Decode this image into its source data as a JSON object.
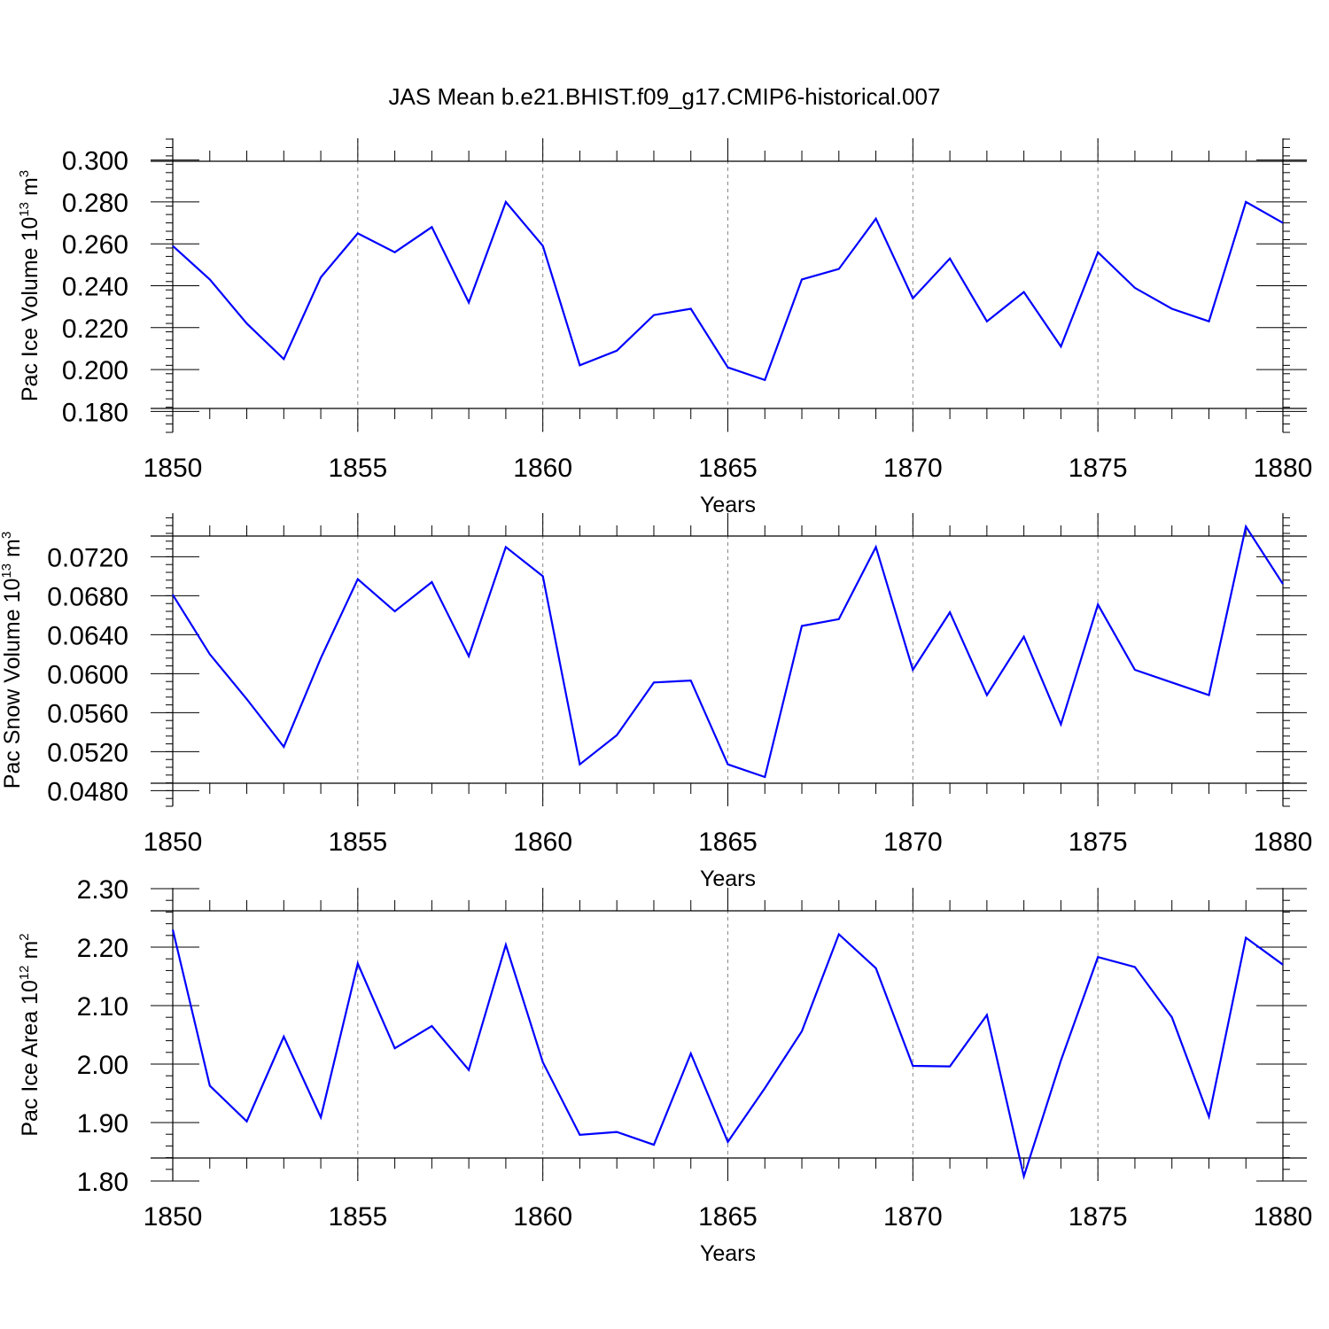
{
  "title": "JAS Mean b.e21.BHIST.f09_g17.CMIP6-historical.007",
  "colors": {
    "line": "#0000ff",
    "grid": "#888888",
    "axis": "#000000"
  },
  "chart_data": [
    {
      "type": "line",
      "ylabel": "Pac Ice Volume 10",
      "ylabel_exp": "13",
      "ylabel_unit": " m",
      "ylabel_unit_exp": "3",
      "xlabel": "Years",
      "xlim": [
        1850,
        1880
      ],
      "ylim": [
        0.17,
        0.31
      ],
      "yticks": [
        0.18,
        0.2,
        0.22,
        0.24,
        0.26,
        0.28,
        0.3
      ],
      "yticklabels": [
        "0.180",
        "0.200",
        "0.220",
        "0.240",
        "0.260",
        "0.280",
        "0.300"
      ],
      "xticks": [
        1850,
        1855,
        1860,
        1865,
        1870,
        1875,
        1880
      ],
      "xticklabels": [
        "1850",
        "1855",
        "1860",
        "1865",
        "1870",
        "1875",
        "1880"
      ],
      "grid": "vertical dashed",
      "series": [
        {
          "name": "Pac Ice Volume",
          "x": [
            1850,
            1851,
            1852,
            1853,
            1854,
            1855,
            1856,
            1857,
            1858,
            1859,
            1860,
            1861,
            1862,
            1863,
            1864,
            1865,
            1866,
            1867,
            1868,
            1869,
            1870,
            1871,
            1872,
            1873,
            1874,
            1875,
            1876,
            1877,
            1878,
            1879,
            1880
          ],
          "values": [
            0.259,
            0.243,
            0.222,
            0.205,
            0.244,
            0.265,
            0.256,
            0.268,
            0.232,
            0.28,
            0.259,
            0.202,
            0.209,
            0.226,
            0.229,
            0.201,
            0.195,
            0.243,
            0.248,
            0.272,
            0.234,
            0.253,
            0.223,
            0.237,
            0.211,
            0.256,
            0.239,
            0.229,
            0.223,
            0.28,
            0.27
          ]
        }
      ]
    },
    {
      "type": "line",
      "ylabel": "Pac Snow Volume 10",
      "ylabel_exp": "13",
      "ylabel_unit": " m",
      "ylabel_unit_exp": "3",
      "xlabel": "Years",
      "xlim": [
        1850,
        1880
      ],
      "ylim": [
        0.0464,
        0.0764
      ],
      "yticks": [
        0.048,
        0.052,
        0.056,
        0.06,
        0.064,
        0.068,
        0.072
      ],
      "yticklabels": [
        "0.0480",
        "0.0520",
        "0.0560",
        "0.0600",
        "0.0640",
        "0.0680",
        "0.0720"
      ],
      "xticks": [
        1850,
        1855,
        1860,
        1865,
        1870,
        1875,
        1880
      ],
      "xticklabels": [
        "1850",
        "1855",
        "1860",
        "1865",
        "1870",
        "1875",
        "1880"
      ],
      "grid": "vertical dashed",
      "series": [
        {
          "name": "Pac Snow Volume",
          "x": [
            1850,
            1851,
            1852,
            1853,
            1854,
            1855,
            1856,
            1857,
            1858,
            1859,
            1860,
            1861,
            1862,
            1863,
            1864,
            1865,
            1866,
            1867,
            1868,
            1869,
            1870,
            1871,
            1872,
            1873,
            1874,
            1875,
            1876,
            1877,
            1878,
            1879,
            1880
          ],
          "values": [
            0.0681,
            0.062,
            0.0574,
            0.0525,
            0.0616,
            0.0697,
            0.0664,
            0.0694,
            0.0618,
            0.073,
            0.07,
            0.0507,
            0.0537,
            0.0591,
            0.0593,
            0.0507,
            0.0494,
            0.0649,
            0.0656,
            0.073,
            0.0604,
            0.0663,
            0.0578,
            0.0638,
            0.0548,
            0.0671,
            0.0604,
            0.0591,
            0.0578,
            0.0751,
            0.0692
          ]
        }
      ]
    },
    {
      "type": "line",
      "ylabel": "Pac Ice Area 10",
      "ylabel_exp": "12",
      "ylabel_unit": " m",
      "ylabel_unit_exp": "2",
      "xlabel": "Years",
      "xlim": [
        1850,
        1880
      ],
      "ylim": [
        1.8,
        2.3
      ],
      "yticks": [
        1.8,
        1.9,
        2.0,
        2.1,
        2.2,
        2.3
      ],
      "yticklabels": [
        "1.80",
        "1.90",
        "2.00",
        "2.10",
        "2.20",
        "2.30"
      ],
      "xticks": [
        1850,
        1855,
        1860,
        1865,
        1870,
        1875,
        1880
      ],
      "xticklabels": [
        "1850",
        "1855",
        "1860",
        "1865",
        "1870",
        "1875",
        "1880"
      ],
      "grid": "vertical dashed",
      "series": [
        {
          "name": "Pac Ice Area",
          "x": [
            1850,
            1851,
            1852,
            1853,
            1854,
            1855,
            1856,
            1857,
            1858,
            1859,
            1860,
            1861,
            1862,
            1863,
            1864,
            1865,
            1866,
            1867,
            1868,
            1869,
            1870,
            1871,
            1872,
            1873,
            1874,
            1875,
            1876,
            1877,
            1878,
            1879,
            1880
          ],
          "values": [
            2.23,
            1.963,
            1.902,
            2.047,
            1.909,
            2.172,
            2.027,
            2.065,
            1.99,
            2.204,
            2.003,
            1.879,
            1.884,
            1.862,
            2.018,
            1.867,
            1.959,
            2.056,
            2.222,
            2.164,
            1.997,
            1.996,
            2.084,
            1.808,
            2.006,
            2.183,
            2.166,
            2.08,
            1.91,
            2.216,
            2.17
          ]
        }
      ]
    }
  ]
}
